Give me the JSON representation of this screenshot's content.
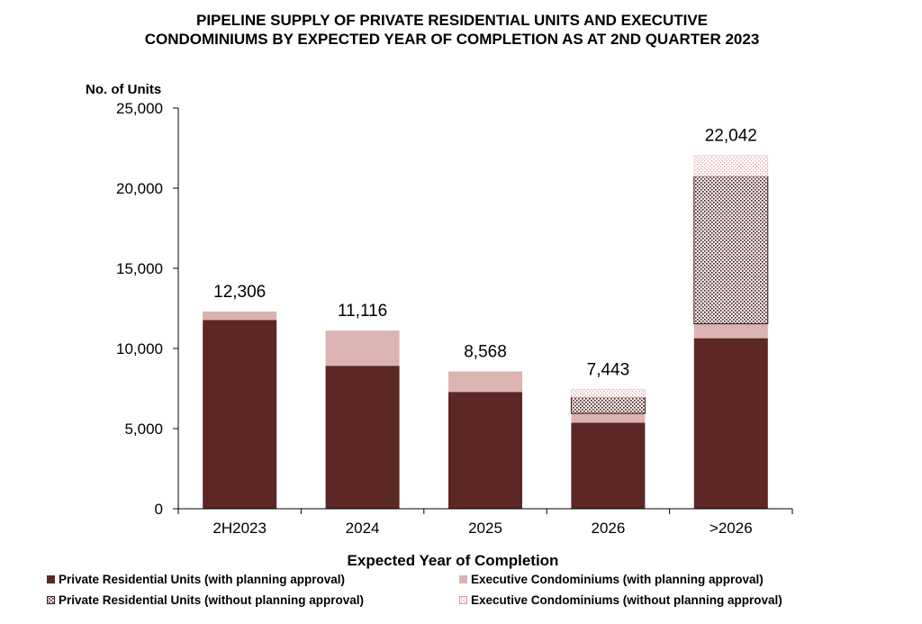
{
  "chart_data": {
    "type": "bar",
    "stacked": true,
    "title_lines": [
      "PIPELINE SUPPLY OF PRIVATE RESIDENTIAL UNITS AND EXECUTIVE",
      "CONDOMINIUMS BY EXPECTED YEAR OF COMPLETION AS AT 2ND QUARTER 2023"
    ],
    "ylabel": "No. of Units",
    "xlabel": "Expected Year of Completion",
    "ylim": [
      0,
      25000
    ],
    "yticks": [
      0,
      5000,
      10000,
      15000,
      20000,
      25000
    ],
    "ytick_labels": [
      "0",
      "5,000",
      "10,000",
      "15,000",
      "20,000",
      "25,000"
    ],
    "categories": [
      "2H2023",
      "2024",
      "2025",
      "2026",
      ">2026"
    ],
    "series": [
      {
        "name": "Private Residential Units (with planning approval)",
        "values": [
          11780,
          8920,
          7290,
          5370,
          10640
        ],
        "color": "#5c2724",
        "pattern": "solid"
      },
      {
        "name": "Executive Condominiums (with planning approval)",
        "values": [
          526,
          2196,
          1278,
          580,
          900
        ],
        "color": "#dbb3b1",
        "pattern": "solid"
      },
      {
        "name": "Private Residential Units (without planning approval)",
        "values": [
          0,
          0,
          0,
          1010,
          9200
        ],
        "color": "#5c2724",
        "pattern": "dots"
      },
      {
        "name": "Executive Condominiums (without planning approval)",
        "values": [
          0,
          0,
          0,
          483,
          1302
        ],
        "color": "#e8b4b4",
        "pattern": "light-dots"
      }
    ],
    "totals": [
      12306,
      11116,
      8568,
      7443,
      22042
    ],
    "total_labels": [
      "12,306",
      "11,116",
      "8,568",
      "7,443",
      "22,042"
    ],
    "legend_position": "bottom",
    "grid": false
  }
}
